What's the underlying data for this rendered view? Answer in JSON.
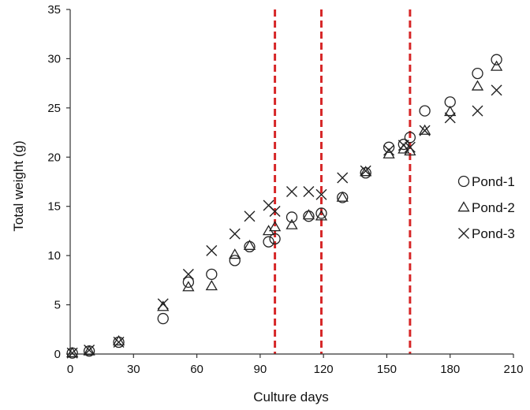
{
  "chart_data": {
    "type": "scatter",
    "title": "",
    "xlabel": "Culture days",
    "ylabel": "Total weight (g)",
    "xlim": [
      0,
      210
    ],
    "ylim": [
      0,
      35
    ],
    "xticks": [
      "0",
      "30",
      "60",
      "90",
      "120",
      "150",
      "180",
      "210"
    ],
    "yticks": [
      "0",
      "5",
      "10",
      "15",
      "20",
      "25",
      "30",
      "35"
    ],
    "grid": false,
    "legend_position": "right",
    "reference_lines": {
      "axis": "x",
      "values": [
        97,
        119,
        161
      ],
      "color": "#d62728",
      "style": "dashed"
    },
    "series": [
      {
        "name": "Pond-1",
        "marker": "circle",
        "color": "#222222",
        "points": [
          [
            1,
            0.1
          ],
          [
            9,
            0.3
          ],
          [
            23,
            1.2
          ],
          [
            44,
            3.6
          ],
          [
            56,
            7.3
          ],
          [
            67,
            8.1
          ],
          [
            78,
            9.5
          ],
          [
            85,
            10.9
          ],
          [
            94,
            11.4
          ],
          [
            97,
            11.7
          ],
          [
            105,
            13.9
          ],
          [
            113,
            14.0
          ],
          [
            119,
            14.3
          ],
          [
            129,
            15.9
          ],
          [
            140,
            18.4
          ],
          [
            151,
            21.0
          ],
          [
            158,
            21.3
          ],
          [
            161,
            22.0
          ],
          [
            168,
            24.7
          ],
          [
            180,
            25.6
          ],
          [
            193,
            28.5
          ],
          [
            202,
            29.9
          ]
        ]
      },
      {
        "name": "Pond-2",
        "marker": "triangle",
        "color": "#222222",
        "points": [
          [
            1,
            0.1
          ],
          [
            9,
            0.3
          ],
          [
            23,
            1.3
          ],
          [
            44,
            4.8
          ],
          [
            56,
            6.8
          ],
          [
            67,
            6.9
          ],
          [
            78,
            10.1
          ],
          [
            85,
            11.0
          ],
          [
            94,
            12.5
          ],
          [
            97,
            12.9
          ],
          [
            105,
            13.1
          ],
          [
            113,
            14.1
          ],
          [
            119,
            14.0
          ],
          [
            129,
            15.9
          ],
          [
            140,
            18.5
          ],
          [
            151,
            20.3
          ],
          [
            158,
            20.8
          ],
          [
            161,
            20.6
          ],
          [
            168,
            22.7
          ],
          [
            180,
            24.6
          ],
          [
            193,
            27.2
          ],
          [
            202,
            29.2
          ]
        ]
      },
      {
        "name": "Pond-3",
        "marker": "cross",
        "color": "#222222",
        "points": [
          [
            1,
            0.1
          ],
          [
            9,
            0.4
          ],
          [
            23,
            1.2
          ],
          [
            44,
            5.1
          ],
          [
            56,
            8.1
          ],
          [
            67,
            10.5
          ],
          [
            78,
            12.2
          ],
          [
            85,
            14.0
          ],
          [
            94,
            15.1
          ],
          [
            97,
            14.5
          ],
          [
            105,
            16.5
          ],
          [
            113,
            16.5
          ],
          [
            119,
            16.2
          ],
          [
            129,
            17.9
          ],
          [
            140,
            18.6
          ],
          [
            151,
            20.7
          ],
          [
            158,
            21.2
          ],
          [
            161,
            21.0
          ],
          [
            168,
            22.7
          ],
          [
            180,
            24.0
          ],
          [
            193,
            24.7
          ],
          [
            202,
            26.8
          ]
        ]
      }
    ]
  }
}
